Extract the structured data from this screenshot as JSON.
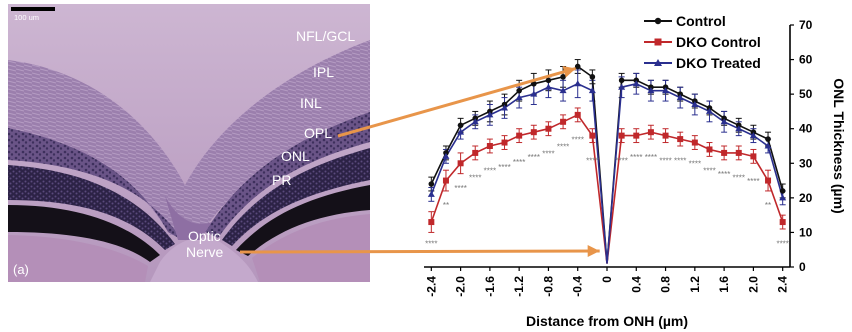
{
  "micrograph": {
    "scale_bar": "100 um",
    "panel_label": "(a)",
    "layers": [
      {
        "key": "nfl",
        "label": "NFL/GCL"
      },
      {
        "key": "ipl",
        "label": "IPL"
      },
      {
        "key": "inl",
        "label": "INL"
      },
      {
        "key": "opl",
        "label": "OPL"
      },
      {
        "key": "onl",
        "label": "ONL"
      },
      {
        "key": "pr",
        "label": "PR"
      }
    ],
    "optic_label": "Optic",
    "nerve_label": "Nerve"
  },
  "colors": {
    "arrow": "#e8954a",
    "control": "#111111",
    "dko_control": "#c0282b",
    "dko_treated": "#2a2f8f",
    "stars": "#777777"
  },
  "chart_data": {
    "type": "line",
    "xlabel": "Distance from ONH (µm)",
    "ylabel": "ONL Thickness (µm)",
    "xlim": [
      -2.5,
      2.5
    ],
    "ylim": [
      0,
      70
    ],
    "xticks": [
      "-2.4",
      "-2.0",
      "-1.6",
      "-1.2",
      "-0.8",
      "-0.4",
      "0",
      "0.4",
      "0.8",
      "1.2",
      "1.6",
      "2.0",
      "2.4"
    ],
    "xtick_values": [
      -2.4,
      -2.0,
      -1.6,
      -1.2,
      -0.8,
      -0.4,
      0,
      0.4,
      0.8,
      1.2,
      1.6,
      2.0,
      2.4
    ],
    "yticks": [
      0,
      10,
      20,
      30,
      40,
      50,
      60,
      70
    ],
    "x": [
      -2.4,
      -2.2,
      -2.0,
      -1.8,
      -1.6,
      -1.4,
      -1.2,
      -1.0,
      -0.8,
      -0.6,
      -0.4,
      -0.2,
      0,
      0.2,
      0.4,
      0.6,
      0.8,
      1.0,
      1.2,
      1.4,
      1.6,
      1.8,
      2.0,
      2.2,
      2.4
    ],
    "legend": "top-left",
    "series": [
      {
        "name": "Control",
        "color": "#111111",
        "marker": "circle",
        "values": [
          24,
          33,
          41,
          43,
          45,
          47,
          51,
          53,
          54,
          55,
          58,
          55,
          1,
          54,
          54,
          52,
          52,
          50,
          48,
          46,
          43,
          41,
          39,
          37,
          22
        ],
        "err": [
          2,
          2,
          2,
          2,
          3,
          3,
          3,
          3,
          3,
          3,
          2,
          2,
          0,
          2,
          2,
          2,
          2,
          2,
          2,
          2,
          2,
          2,
          2,
          2,
          2
        ]
      },
      {
        "name": "DKO Control",
        "color": "#c0282b",
        "marker": "square",
        "values": [
          13,
          25,
          30,
          33,
          35,
          36,
          38,
          39,
          40,
          42,
          44,
          38,
          1,
          38,
          38,
          39,
          38,
          37,
          36,
          34,
          33,
          33,
          32,
          25,
          13
        ],
        "err": [
          3,
          3,
          3,
          2,
          2,
          2,
          2,
          2,
          2,
          2,
          2,
          2,
          0,
          2,
          2,
          2,
          2,
          2,
          2,
          2,
          2,
          2,
          2,
          3,
          2
        ]
      },
      {
        "name": "DKO Treated",
        "color": "#2a2f8f",
        "marker": "triangle",
        "values": [
          21,
          32,
          39,
          42,
          44,
          46,
          49,
          50,
          52,
          51,
          53,
          51,
          1,
          52,
          53,
          51,
          51,
          49,
          47,
          45,
          42,
          40,
          38,
          35,
          20
        ],
        "err": [
          2,
          2,
          2,
          2,
          3,
          3,
          3,
          3,
          3,
          3,
          4,
          3,
          0,
          3,
          3,
          3,
          3,
          3,
          3,
          3,
          3,
          2,
          2,
          2,
          2
        ]
      }
    ],
    "annotations": [
      {
        "x": -2.4,
        "y": 6,
        "text": "****"
      },
      {
        "x": -2.2,
        "y": 17,
        "text": "**"
      },
      {
        "x": -2.0,
        "y": 22,
        "text": "****"
      },
      {
        "x": -1.8,
        "y": 25,
        "text": "****"
      },
      {
        "x": -1.6,
        "y": 27,
        "text": "****"
      },
      {
        "x": -1.4,
        "y": 28,
        "text": "****"
      },
      {
        "x": -1.2,
        "y": 29.5,
        "text": "****"
      },
      {
        "x": -1.0,
        "y": 31,
        "text": "****"
      },
      {
        "x": -0.8,
        "y": 32,
        "text": "****"
      },
      {
        "x": -0.6,
        "y": 34,
        "text": "****"
      },
      {
        "x": -0.4,
        "y": 36,
        "text": "****"
      },
      {
        "x": -0.2,
        "y": 30,
        "text": "****"
      },
      {
        "x": 0.2,
        "y": 30,
        "text": "****"
      },
      {
        "x": 0.4,
        "y": 31,
        "text": "****"
      },
      {
        "x": 0.6,
        "y": 31,
        "text": "****"
      },
      {
        "x": 0.8,
        "y": 30,
        "text": "****"
      },
      {
        "x": 1.0,
        "y": 30,
        "text": "****"
      },
      {
        "x": 1.2,
        "y": 29,
        "text": "****"
      },
      {
        "x": 1.4,
        "y": 27,
        "text": "****"
      },
      {
        "x": 1.6,
        "y": 26,
        "text": "****"
      },
      {
        "x": 1.8,
        "y": 25,
        "text": "****"
      },
      {
        "x": 2.0,
        "y": 24,
        "text": "****"
      },
      {
        "x": 2.2,
        "y": 17,
        "text": "**"
      },
      {
        "x": 2.4,
        "y": 6,
        "text": "****"
      }
    ]
  }
}
